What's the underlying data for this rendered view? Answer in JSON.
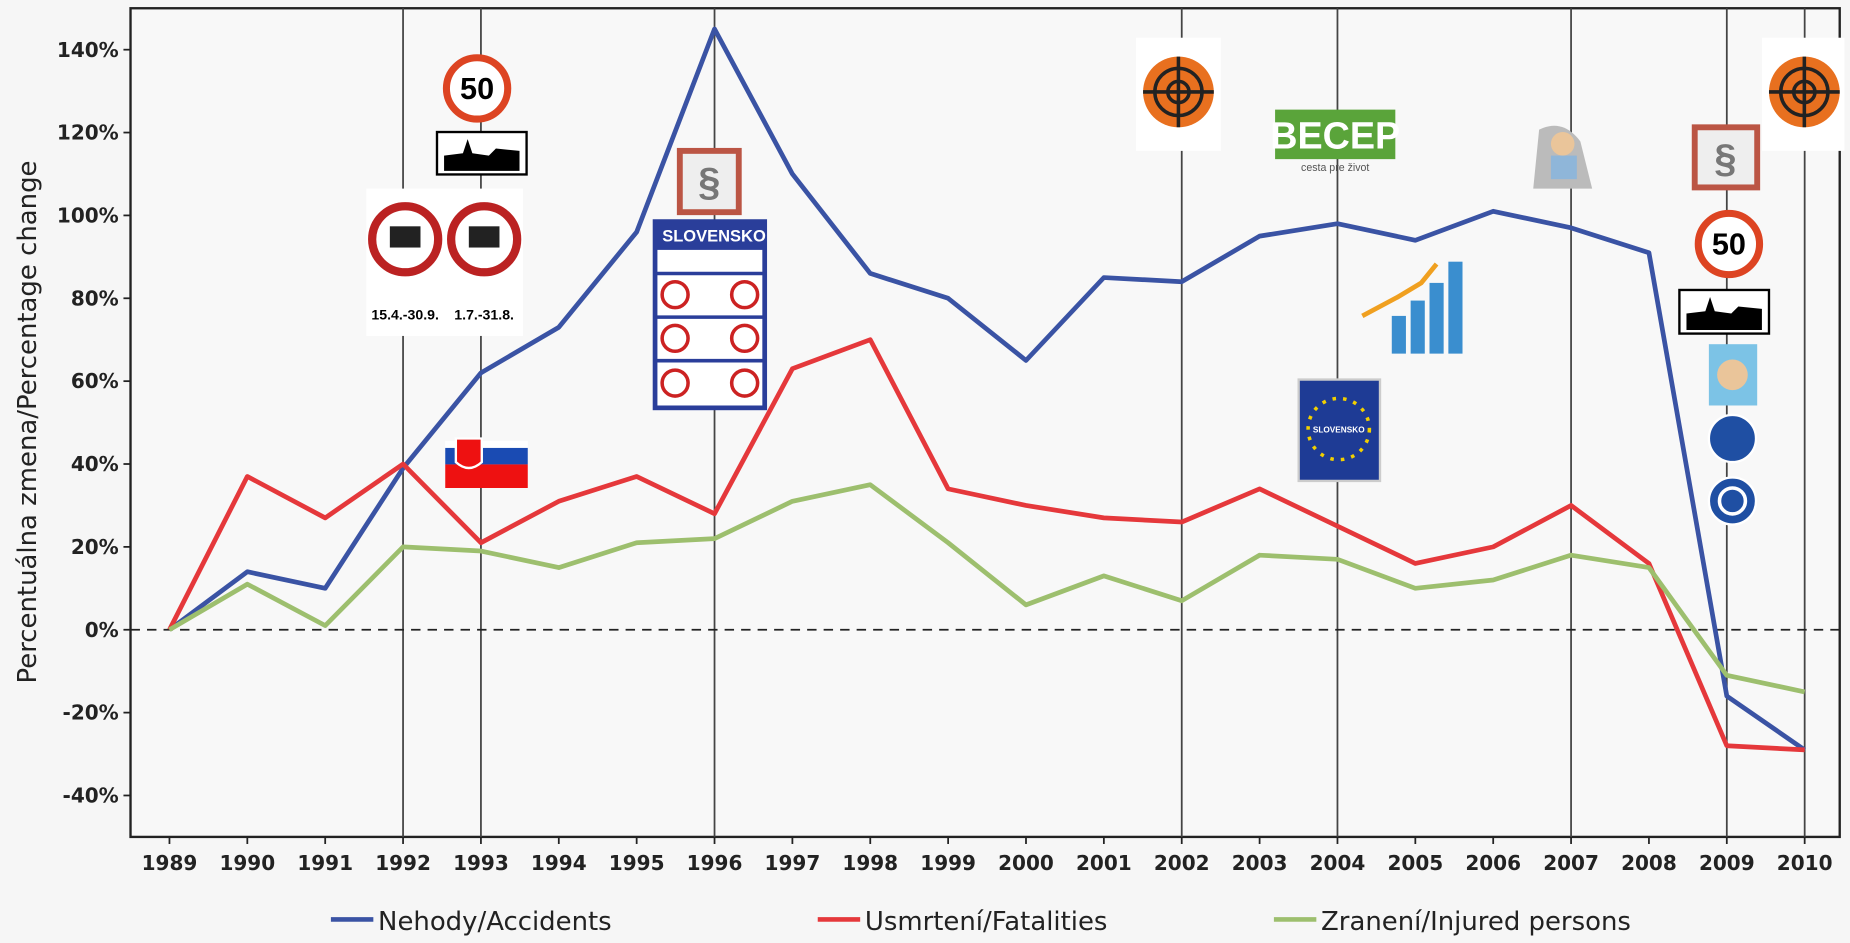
{
  "chart_data": {
    "type": "line",
    "y_label": "Percentuálna zmena/Percentage change",
    "x": [
      1989,
      1990,
      1991,
      1992,
      1993,
      1994,
      1995,
      1996,
      1997,
      1998,
      1999,
      2000,
      2001,
      2002,
      2003,
      2004,
      2005,
      2006,
      2007,
      2008,
      2009,
      2010
    ],
    "xlim": [
      1988.5,
      2010.45
    ],
    "xticks": [
      1989,
      1990,
      1991,
      1992,
      1993,
      1994,
      1995,
      1996,
      1997,
      1998,
      1999,
      2000,
      2001,
      2002,
      2003,
      2004,
      2005,
      2006,
      2007,
      2008,
      2009,
      2010
    ],
    "ylim": [
      -50,
      150
    ],
    "yticks": [
      {
        "value": -40,
        "label": "-40%"
      },
      {
        "value": -20,
        "label": "-20%"
      },
      {
        "value": 0,
        "label": "0%"
      },
      {
        "value": 20,
        "label": "20%"
      },
      {
        "value": 40,
        "label": "40%"
      },
      {
        "value": 60,
        "label": "60%"
      },
      {
        "value": 80,
        "label": "80%"
      },
      {
        "value": 100,
        "label": "100%"
      },
      {
        "value": 120,
        "label": "120%"
      },
      {
        "value": 140,
        "label": "140%"
      }
    ],
    "vlines": [
      1992,
      1993,
      1996,
      2002,
      2004,
      2007,
      2009,
      2010
    ],
    "zero_line": true,
    "series": [
      {
        "name": "Nehody/Accidents",
        "color": "#3a53a4",
        "values": [
          0,
          14,
          10,
          39,
          62,
          73,
          96,
          145,
          110,
          86,
          80,
          65,
          85,
          84,
          95,
          98,
          94,
          101,
          97,
          91,
          -16,
          -29
        ]
      },
      {
        "name": "Usmrtení/Fatalities",
        "color": "#e5383b",
        "values": [
          0,
          37,
          27,
          40,
          21,
          31,
          37,
          28,
          63,
          70,
          34,
          30,
          27,
          26,
          34,
          25,
          16,
          20,
          30,
          16,
          -28,
          -29
        ]
      },
      {
        "name": "Zranení/Injured persons",
        "color": "#9dbf6e",
        "values": [
          0,
          11,
          1,
          20,
          19,
          15,
          21,
          22,
          31,
          35,
          21,
          6,
          13,
          7,
          18,
          17,
          10,
          12,
          18,
          15,
          -11,
          -15
        ]
      }
    ],
    "annotations": [
      "50",
      "15.4.-30.9.",
      "1.7.-31.8.",
      "§",
      "SLOVENSKO",
      "BECEP",
      "cesta pre život",
      "SLOVENSKO",
      "§",
      "50"
    ]
  }
}
